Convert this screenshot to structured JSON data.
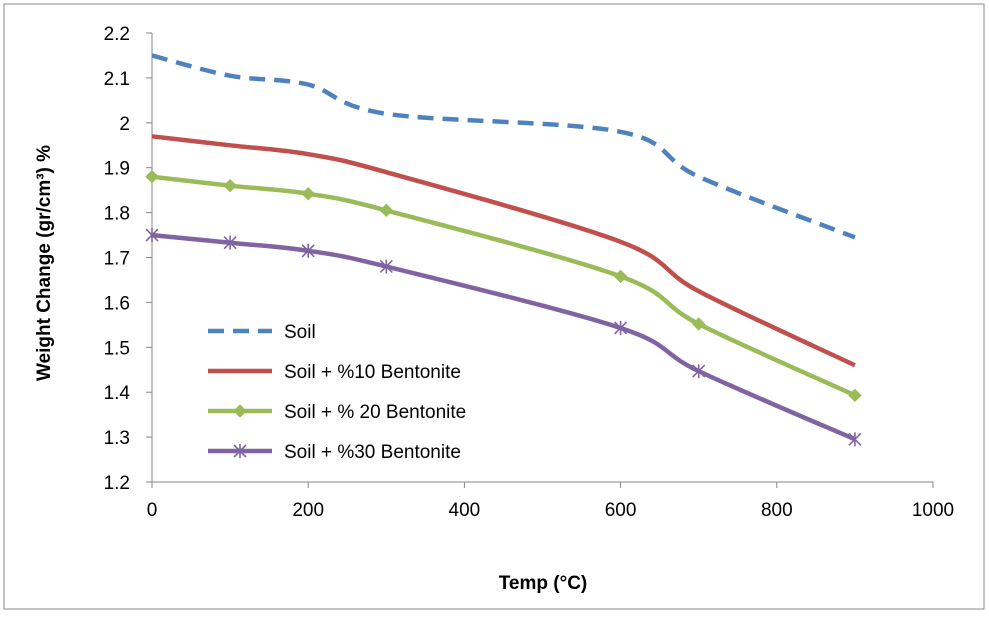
{
  "chart_data": {
    "type": "line",
    "title": "",
    "xlabel": "Temp (°C)",
    "ylabel": "Weight Change (gr/cm³) %",
    "xlim": [
      0,
      1000
    ],
    "ylim": [
      1.2,
      2.2
    ],
    "x_ticks": [
      "0",
      "200",
      "400",
      "600",
      "800",
      "1000"
    ],
    "y_ticks": [
      "1.2",
      "1.3",
      "1.4",
      "1.5",
      "1.6",
      "1.7",
      "1.8",
      "1.9",
      "2",
      "2.1",
      "2.2"
    ],
    "grid": false,
    "legend_position": "left",
    "series": [
      {
        "name": "Soil",
        "color": "#4F81BD",
        "style": "dashed",
        "marker": "none",
        "x": [
          0,
          100,
          200,
          300,
          600,
          700,
          900
        ],
        "y": [
          2.15,
          2.105,
          2.085,
          2.02,
          1.98,
          1.88,
          1.745
        ]
      },
      {
        "name": "Soil + %10 Bentonite",
        "color": "#C0504D",
        "style": "solid",
        "marker": "none",
        "x": [
          0,
          100,
          200,
          300,
          600,
          700,
          900
        ],
        "y": [
          1.97,
          1.95,
          1.93,
          1.89,
          1.735,
          1.625,
          1.46
        ]
      },
      {
        "name": "Soil + % 20 Bentonite",
        "color": "#9BBB59",
        "style": "solid",
        "marker": "diamond",
        "x": [
          0,
          100,
          200,
          300,
          600,
          700,
          900
        ],
        "y": [
          1.88,
          1.86,
          1.842,
          1.805,
          1.658,
          1.552,
          1.393
        ]
      },
      {
        "name": "Soil + %30 Bentonite",
        "color": "#8064A2",
        "style": "solid",
        "marker": "star",
        "x": [
          0,
          100,
          200,
          300,
          600,
          700,
          900
        ],
        "y": [
          1.75,
          1.733,
          1.715,
          1.68,
          1.543,
          1.447,
          1.295
        ]
      }
    ]
  }
}
